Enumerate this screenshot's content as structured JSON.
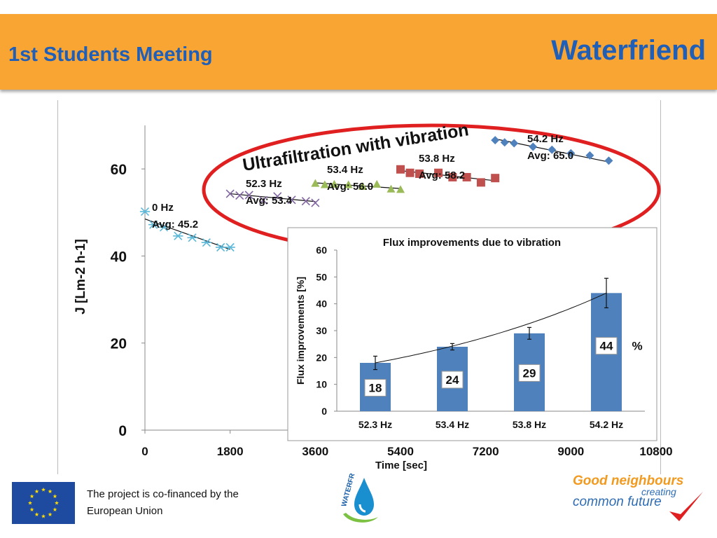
{
  "header": {
    "left_title": "1st Students Meeting",
    "right_title": "Waterfriend"
  },
  "colors": {
    "banner": "#f9a533",
    "title_blue": "#1f5fb8",
    "ellipse_red": "#e02020",
    "bar_blue": "#4f81bd"
  },
  "chart_data": [
    {
      "type": "scatter",
      "title": "",
      "xlabel": "Time [sec]",
      "ylabel": "J [Lm-2 h-1]",
      "xlim": [
        0,
        10800
      ],
      "ylim": [
        0,
        70
      ],
      "xticks": [
        "0",
        "1800",
        "3600",
        "5400",
        "7200",
        "9000",
        "10800"
      ],
      "yticks": [
        "0",
        "20",
        "40",
        "60"
      ],
      "annotation": "Ultrafiltration with vibration",
      "series": [
        {
          "name": "0 Hz",
          "avg_label": "Avg: 45.2",
          "marker": "asterisk",
          "color": "#5bb8d8",
          "x": [
            0,
            180,
            400,
            700,
            1000,
            1300,
            1600,
            1800
          ],
          "y": [
            50.2,
            47.2,
            46.6,
            44.6,
            44.2,
            43.1,
            42.0,
            42.0
          ],
          "trend": [
            [
              0,
              48.5
            ],
            [
              1800,
              41.5
            ]
          ]
        },
        {
          "name": "52.3 Hz",
          "avg_label": "Avg: 53.4",
          "marker": "x",
          "color": "#8064a2",
          "x": [
            1800,
            2000,
            2200,
            2500,
            2800,
            3100,
            3400,
            3600
          ],
          "y": [
            54.3,
            53.9,
            54.0,
            52.8,
            53.7,
            52.9,
            52.6,
            52.2
          ],
          "trend": [
            [
              1800,
              54.3
            ],
            [
              3600,
              52.5
            ]
          ]
        },
        {
          "name": "53.4 Hz",
          "avg_label": "Avg: 56.0",
          "marker": "triangle",
          "color": "#9bbb59",
          "x": [
            3600,
            3800,
            4000,
            4300,
            4600,
            4900,
            5200,
            5400
          ],
          "y": [
            56.7,
            56.4,
            56.5,
            56.4,
            56.0,
            56.5,
            55.4,
            55.3
          ],
          "trend": [
            [
              3600,
              56.8
            ],
            [
              5400,
              55.5
            ]
          ]
        },
        {
          "name": "53.8 Hz",
          "avg_label": "Avg: 58.2",
          "marker": "square",
          "color": "#c0504d",
          "x": [
            5400,
            5600,
            5800,
            6200,
            6500,
            6800,
            7100,
            7400
          ],
          "y": [
            59.9,
            59.1,
            58.9,
            59.1,
            58.1,
            58.1,
            56.9,
            57.9
          ],
          "trend": [
            [
              5400,
              59.6
            ],
            [
              7400,
              57.3
            ]
          ]
        },
        {
          "name": "54.2 Hz",
          "avg_label": "Avg: 65.0",
          "marker": "diamond",
          "color": "#4f81bd",
          "x": [
            7400,
            7600,
            7800,
            8200,
            8600,
            9000,
            9400,
            9800
          ],
          "y": [
            66.6,
            66.1,
            65.9,
            65.1,
            64.4,
            63.6,
            63.1,
            61.9
          ],
          "trend": [
            [
              7400,
              66.9
            ],
            [
              9800,
              61.6
            ]
          ]
        }
      ]
    },
    {
      "type": "bar",
      "title": "Flux improvements due to vibration",
      "xlabel": "",
      "ylabel": "Flux improvements [%]",
      "ylim": [
        0,
        60
      ],
      "yticks": [
        "0",
        "10",
        "20",
        "30",
        "40",
        "50",
        "60"
      ],
      "categories": [
        "52.3 Hz",
        "53.4 Hz",
        "53.8 Hz",
        "54.2 Hz"
      ],
      "values": [
        18,
        24,
        29,
        44
      ],
      "errors": [
        2.5,
        1.2,
        2.2,
        5.5
      ],
      "data_labels": [
        "18",
        "24",
        "29",
        "44"
      ],
      "unit_label": "%",
      "trend": "exponential"
    }
  ],
  "footer": {
    "cofinance_line1": "The project is co-financed by the",
    "cofinance_line2": "European Union",
    "logo_waterfriend_text": "WATERFR",
    "slogan_line1": "Good neighbours",
    "slogan_line2": "creating",
    "slogan_line3": "common future"
  }
}
